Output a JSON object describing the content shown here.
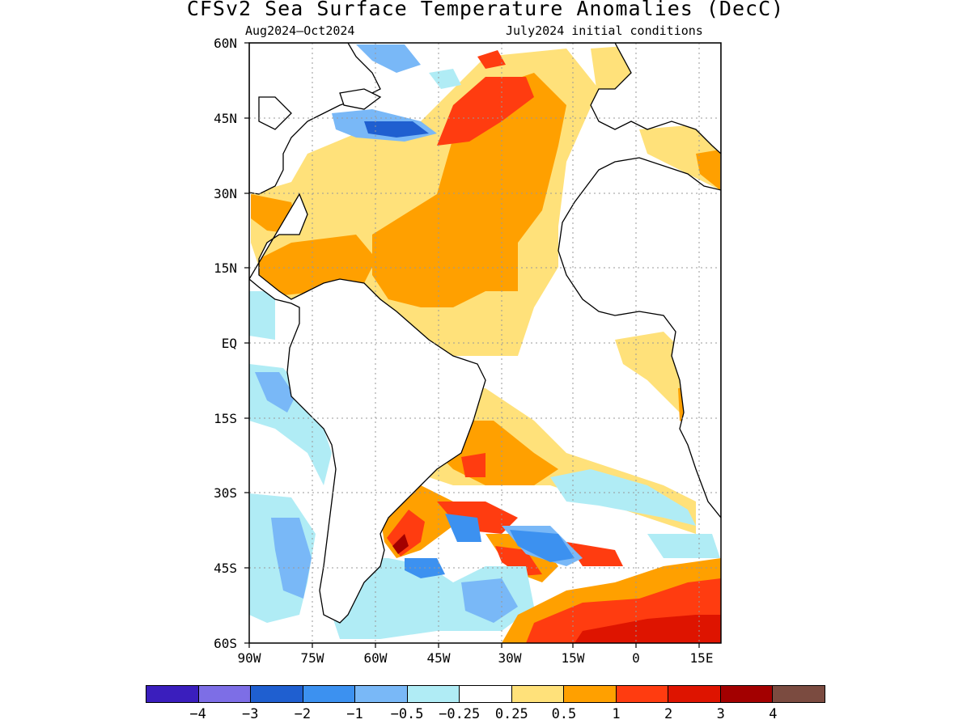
{
  "title": "CFSv2 Sea Surface Temperature Anomalies (DecC)",
  "subtitle_left": "Aug2024–Oct2024",
  "subtitle_right": "July2024 initial conditions",
  "lat_labels": [
    "60N",
    "45N",
    "30N",
    "15N",
    "EQ",
    "15S",
    "30S",
    "45S",
    "60S"
  ],
  "lon_labels": [
    "90W",
    "75W",
    "60W",
    "45W",
    "30W",
    "15W",
    "0",
    "15E"
  ],
  "colorbar": {
    "colors": [
      "#3a1ebd",
      "#7d6ee6",
      "#1f5fd0",
      "#3c91f0",
      "#79b8f7",
      "#b0ecf5",
      "#ffffff",
      "#ffe17a",
      "#ffa000",
      "#ff3c10",
      "#de1400",
      "#a30000",
      "#7b4b40"
    ],
    "labels": [
      "−4",
      "−3",
      "−2",
      "−1",
      "−0.5",
      "−0.25",
      "0.25",
      "0.5",
      "1",
      "2",
      "3",
      "4"
    ]
  }
}
